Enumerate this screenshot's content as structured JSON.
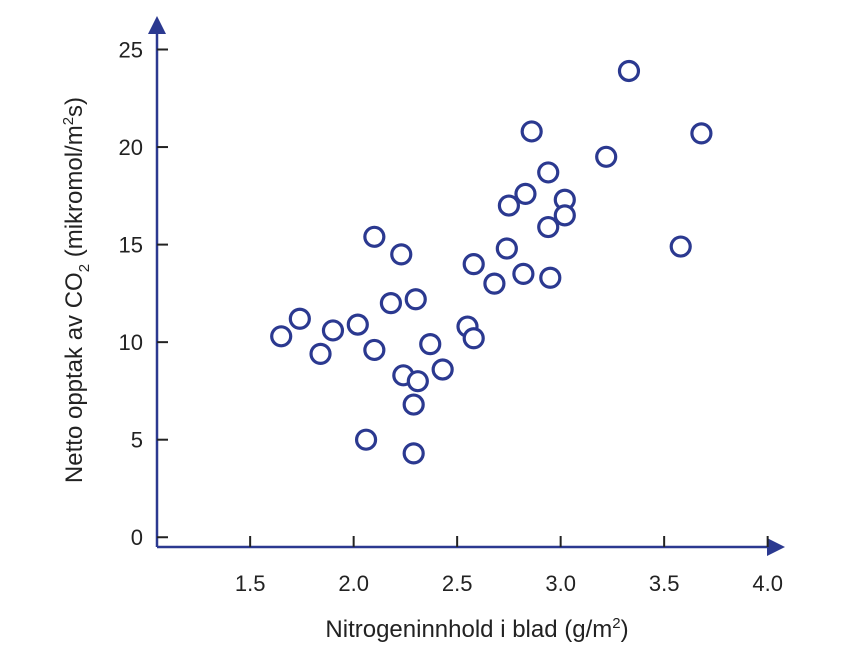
{
  "chart_data": {
    "type": "scatter",
    "title": "",
    "xlabel": {
      "main": "Nitrogeninnhold i blad (g/m",
      "sup": "2",
      "end": ")"
    },
    "ylabel": {
      "part1": "Netto opptak av CO",
      "sub": "2",
      "part2": " (mikromol/m",
      "sup": "2",
      "part3": "s)"
    },
    "xlim": [
      1.05,
      4.05
    ],
    "ylim": [
      -0.5,
      26.0
    ],
    "x_ticks": [
      1.5,
      2.0,
      2.5,
      3.0,
      3.5,
      4.0
    ],
    "x_tick_labels": [
      "1.5",
      "2.0",
      "2.5",
      "3.0",
      "3.5",
      "4.0"
    ],
    "y_ticks": [
      0,
      5,
      10,
      15,
      20,
      25
    ],
    "y_tick_labels": [
      "0",
      "5",
      "10",
      "15",
      "20",
      "25"
    ],
    "grid": false,
    "colors": {
      "axis": "#2b3990",
      "marker": "#2b3990",
      "text": "#222222"
    },
    "points": [
      {
        "x": 1.65,
        "y": 10.3
      },
      {
        "x": 1.74,
        "y": 11.2
      },
      {
        "x": 1.84,
        "y": 9.4
      },
      {
        "x": 1.9,
        "y": 10.6
      },
      {
        "x": 2.02,
        "y": 10.9
      },
      {
        "x": 2.06,
        "y": 5.0
      },
      {
        "x": 2.1,
        "y": 15.4
      },
      {
        "x": 2.1,
        "y": 9.6
      },
      {
        "x": 2.18,
        "y": 12.0
      },
      {
        "x": 2.23,
        "y": 14.5
      },
      {
        "x": 2.24,
        "y": 8.3
      },
      {
        "x": 2.29,
        "y": 6.8
      },
      {
        "x": 2.29,
        "y": 4.3
      },
      {
        "x": 2.3,
        "y": 12.2
      },
      {
        "x": 2.31,
        "y": 8.0
      },
      {
        "x": 2.37,
        "y": 9.9
      },
      {
        "x": 2.43,
        "y": 8.6
      },
      {
        "x": 2.55,
        "y": 10.8
      },
      {
        "x": 2.58,
        "y": 10.2
      },
      {
        "x": 2.58,
        "y": 14.0
      },
      {
        "x": 2.68,
        "y": 13.0
      },
      {
        "x": 2.74,
        "y": 14.8
      },
      {
        "x": 2.75,
        "y": 17.0
      },
      {
        "x": 2.82,
        "y": 13.5
      },
      {
        "x": 2.83,
        "y": 17.6
      },
      {
        "x": 2.86,
        "y": 20.8
      },
      {
        "x": 2.94,
        "y": 18.7
      },
      {
        "x": 2.94,
        "y": 15.9
      },
      {
        "x": 2.95,
        "y": 13.3
      },
      {
        "x": 3.02,
        "y": 17.3
      },
      {
        "x": 3.02,
        "y": 16.5
      },
      {
        "x": 3.22,
        "y": 19.5
      },
      {
        "x": 3.33,
        "y": 23.9
      },
      {
        "x": 3.58,
        "y": 14.9
      },
      {
        "x": 3.68,
        "y": 20.7
      }
    ]
  }
}
